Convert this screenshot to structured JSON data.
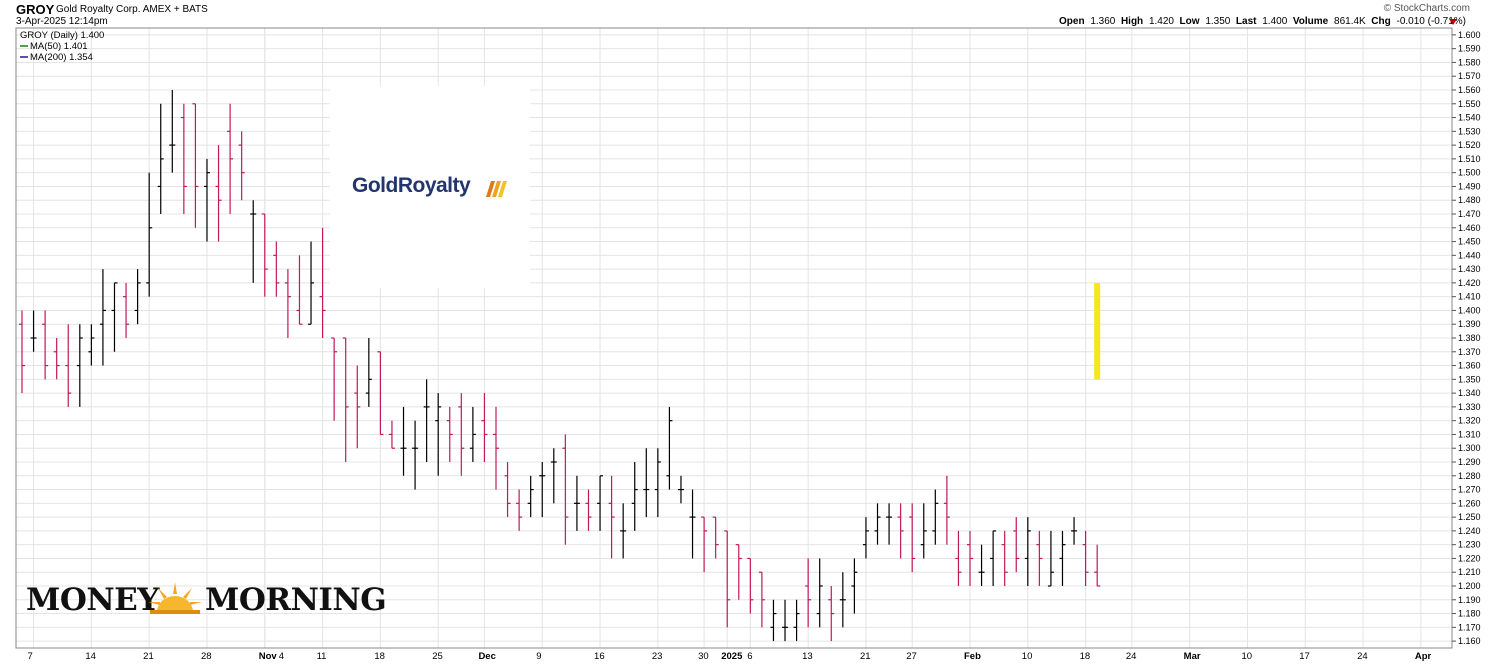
{
  "header": {
    "symbol": "GROY",
    "company": "Gold Royalty Corp.  AMEX + BATS",
    "datetime": "3-Apr-2025 12:14pm",
    "credit": "© StockCharts.com",
    "open_label": "Open",
    "open_value": "1.360",
    "high_label": "High",
    "high_value": "1.420",
    "low_label": "Low",
    "low_value": "1.350",
    "last_label": "Last",
    "last_value": "1.400",
    "volume_label": "Volume",
    "volume_value": "861.4K",
    "chg_label": "Chg",
    "chg_value": "-0.010 (-0.71%)"
  },
  "legend": {
    "main": "GROY (Daily) 1.400",
    "ma50": "MA(50) 1.401",
    "ma200": "MA(200) 1.354"
  },
  "logos": {
    "gold_royalty": "GoldRoyalty",
    "money_morning_left": "MONEY",
    "money_morning_right": "MORNING"
  },
  "colors": {
    "up": "#000000",
    "down": "#c0185a",
    "ma50": "#1a7a1a",
    "ma200": "#1a1a8c",
    "highlight": "#f5e61f",
    "grid": "#e4e4e4"
  },
  "chart_data": {
    "type": "ohlc",
    "y_axis": {
      "min": 1.155,
      "max": 1.605,
      "ticks": [
        1.16,
        1.17,
        1.18,
        1.19,
        1.2,
        1.21,
        1.22,
        1.23,
        1.24,
        1.25,
        1.26,
        1.27,
        1.28,
        1.29,
        1.3,
        1.31,
        1.32,
        1.33,
        1.34,
        1.35,
        1.36,
        1.37,
        1.38,
        1.39,
        1.4,
        1.41,
        1.42,
        1.43,
        1.44,
        1.45,
        1.46,
        1.47,
        1.48,
        1.49,
        1.5,
        1.51,
        1.52,
        1.53,
        1.54,
        1.55,
        1.56,
        1.57,
        1.58,
        1.59,
        1.6
      ],
      "position": "right",
      "grid": true
    },
    "x_labels": [
      {
        "text": "7",
        "i": 1
      },
      {
        "text": "14",
        "i": 6
      },
      {
        "text": "21",
        "i": 11
      },
      {
        "text": "28",
        "i": 16
      },
      {
        "text": "Nov",
        "i": 21
      },
      {
        "text": "4",
        "i": 21
      },
      {
        "text": "11",
        "i": 26
      },
      {
        "text": "18",
        "i": 31
      },
      {
        "text": "25",
        "i": 36
      },
      {
        "text": "Dec",
        "i": 40
      },
      {
        "text": "9",
        "i": 45
      },
      {
        "text": "16",
        "i": 50
      },
      {
        "text": "23",
        "i": 55
      },
      {
        "text": "30",
        "i": 59
      },
      {
        "text": "2025",
        "i": 61
      },
      {
        "text": "6",
        "i": 63
      },
      {
        "text": "13",
        "i": 68
      },
      {
        "text": "21",
        "i": 73
      },
      {
        "text": "27",
        "i": 77
      },
      {
        "text": "Feb",
        "i": 82
      },
      {
        "text": "10",
        "i": 87
      },
      {
        "text": "18",
        "i": 92
      },
      {
        "text": "24",
        "i": 96
      },
      {
        "text": "Mar",
        "i": 101
      },
      {
        "text": "10",
        "i": 106
      },
      {
        "text": "17",
        "i": 111
      },
      {
        "text": "24",
        "i": 116
      },
      {
        "text": "Apr",
        "i": 121
      }
    ],
    "bars": [
      [
        1.39,
        1.4,
        1.34,
        1.36
      ],
      [
        1.38,
        1.4,
        1.37,
        1.38
      ],
      [
        1.39,
        1.4,
        1.35,
        1.36
      ],
      [
        1.37,
        1.38,
        1.35,
        1.36
      ],
      [
        1.36,
        1.39,
        1.33,
        1.34
      ],
      [
        1.36,
        1.39,
        1.33,
        1.38
      ],
      [
        1.37,
        1.39,
        1.36,
        1.38
      ],
      [
        1.39,
        1.43,
        1.36,
        1.4
      ],
      [
        1.4,
        1.42,
        1.37,
        1.42
      ],
      [
        1.41,
        1.42,
        1.38,
        1.39
      ],
      [
        1.4,
        1.43,
        1.39,
        1.42
      ],
      [
        1.42,
        1.5,
        1.41,
        1.46
      ],
      [
        1.49,
        1.55,
        1.47,
        1.51
      ],
      [
        1.52,
        1.56,
        1.5,
        1.52
      ],
      [
        1.54,
        1.55,
        1.47,
        1.49
      ],
      [
        1.55,
        1.55,
        1.46,
        1.49
      ],
      [
        1.49,
        1.51,
        1.45,
        1.5
      ],
      [
        1.49,
        1.52,
        1.45,
        1.48
      ],
      [
        1.53,
        1.55,
        1.47,
        1.51
      ],
      [
        1.52,
        1.53,
        1.48,
        1.5
      ],
      [
        1.47,
        1.48,
        1.42,
        1.47
      ],
      [
        1.47,
        1.47,
        1.41,
        1.43
      ],
      [
        1.44,
        1.45,
        1.41,
        1.42
      ],
      [
        1.42,
        1.43,
        1.38,
        1.41
      ],
      [
        1.4,
        1.44,
        1.39,
        1.39
      ],
      [
        1.39,
        1.45,
        1.39,
        1.42
      ],
      [
        1.41,
        1.46,
        1.38,
        1.4
      ],
      [
        1.38,
        1.38,
        1.32,
        1.37
      ],
      [
        1.38,
        1.38,
        1.29,
        1.33
      ],
      [
        1.34,
        1.36,
        1.3,
        1.33
      ],
      [
        1.34,
        1.38,
        1.33,
        1.35
      ],
      [
        1.37,
        1.37,
        1.31,
        1.31
      ],
      [
        1.31,
        1.32,
        1.3,
        1.3
      ],
      [
        1.3,
        1.33,
        1.28,
        1.3
      ],
      [
        1.3,
        1.32,
        1.27,
        1.3
      ],
      [
        1.33,
        1.35,
        1.29,
        1.33
      ],
      [
        1.32,
        1.34,
        1.28,
        1.33
      ],
      [
        1.32,
        1.33,
        1.29,
        1.31
      ],
      [
        1.33,
        1.34,
        1.28,
        1.3
      ],
      [
        1.3,
        1.33,
        1.29,
        1.31
      ],
      [
        1.32,
        1.34,
        1.29,
        1.31
      ],
      [
        1.31,
        1.33,
        1.27,
        1.3
      ],
      [
        1.28,
        1.29,
        1.25,
        1.26
      ],
      [
        1.26,
        1.27,
        1.24,
        1.25
      ],
      [
        1.26,
        1.28,
        1.25,
        1.27
      ],
      [
        1.28,
        1.29,
        1.25,
        1.28
      ],
      [
        1.29,
        1.3,
        1.26,
        1.29
      ],
      [
        1.3,
        1.31,
        1.23,
        1.25
      ],
      [
        1.26,
        1.28,
        1.24,
        1.26
      ],
      [
        1.26,
        1.27,
        1.24,
        1.25
      ],
      [
        1.26,
        1.28,
        1.24,
        1.28
      ],
      [
        1.26,
        1.28,
        1.22,
        1.25
      ],
      [
        1.24,
        1.26,
        1.22,
        1.24
      ],
      [
        1.26,
        1.29,
        1.24,
        1.27
      ],
      [
        1.27,
        1.3,
        1.25,
        1.27
      ],
      [
        1.27,
        1.3,
        1.25,
        1.29
      ],
      [
        1.28,
        1.33,
        1.27,
        1.32
      ],
      [
        1.27,
        1.28,
        1.26,
        1.27
      ],
      [
        1.25,
        1.27,
        1.22,
        1.25
      ],
      [
        1.25,
        1.25,
        1.21,
        1.24
      ],
      [
        1.25,
        1.25,
        1.22,
        1.23
      ],
      [
        1.24,
        1.24,
        1.17,
        1.19
      ],
      [
        1.23,
        1.23,
        1.19,
        1.22
      ],
      [
        1.22,
        1.22,
        1.18,
        1.19
      ],
      [
        1.21,
        1.21,
        1.17,
        1.19
      ],
      [
        1.17,
        1.19,
        1.16,
        1.18
      ],
      [
        1.17,
        1.19,
        1.16,
        1.17
      ],
      [
        1.17,
        1.19,
        1.16,
        1.18
      ],
      [
        1.2,
        1.22,
        1.17,
        1.19
      ],
      [
        1.18,
        1.22,
        1.17,
        1.2
      ],
      [
        1.19,
        1.2,
        1.16,
        1.18
      ],
      [
        1.19,
        1.21,
        1.17,
        1.19
      ],
      [
        1.2,
        1.22,
        1.18,
        1.21
      ],
      [
        1.23,
        1.25,
        1.22,
        1.24
      ],
      [
        1.24,
        1.26,
        1.23,
        1.25
      ],
      [
        1.25,
        1.26,
        1.23,
        1.25
      ],
      [
        1.25,
        1.26,
        1.22,
        1.24
      ],
      [
        1.25,
        1.26,
        1.21,
        1.22
      ],
      [
        1.23,
        1.26,
        1.22,
        1.24
      ],
      [
        1.24,
        1.27,
        1.23,
        1.26
      ],
      [
        1.26,
        1.28,
        1.23,
        1.25
      ],
      [
        1.22,
        1.24,
        1.2,
        1.21
      ],
      [
        1.23,
        1.24,
        1.2,
        1.22
      ],
      [
        1.21,
        1.23,
        1.2,
        1.21
      ],
      [
        1.22,
        1.24,
        1.2,
        1.24
      ],
      [
        1.23,
        1.24,
        1.2,
        1.21
      ],
      [
        1.24,
        1.25,
        1.21,
        1.22
      ],
      [
        1.22,
        1.25,
        1.2,
        1.24
      ],
      [
        1.23,
        1.24,
        1.2,
        1.22
      ],
      [
        1.2,
        1.24,
        1.2,
        1.21
      ],
      [
        1.22,
        1.24,
        1.2,
        1.23
      ],
      [
        1.24,
        1.25,
        1.23,
        1.24
      ],
      [
        1.23,
        1.24,
        1.2,
        1.21
      ],
      [
        1.21,
        1.23,
        1.2,
        1.2
      ]
    ],
    "ma50": [],
    "ma200": [],
    "last_highlight": {
      "low": 1.35,
      "high": 1.42
    }
  }
}
